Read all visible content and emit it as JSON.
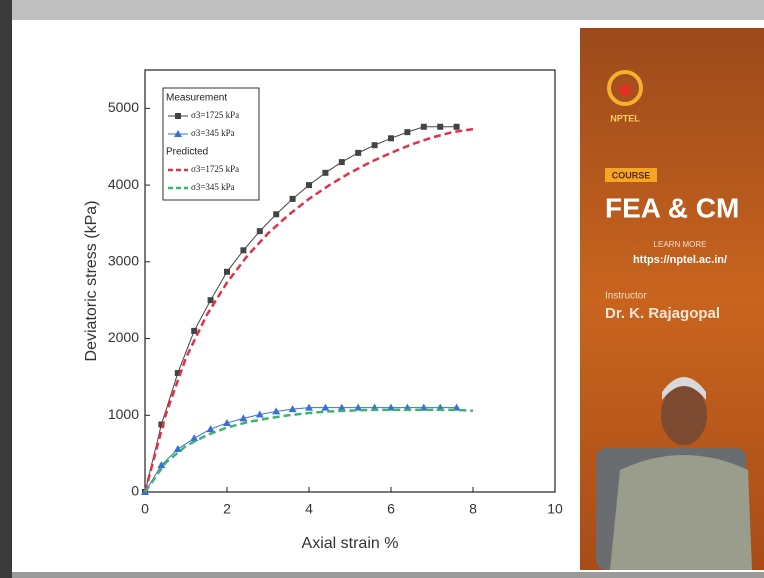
{
  "chart_data": {
    "type": "line",
    "xlabel": "Axial strain %",
    "ylabel": "Deviatoric stress (kPa)",
    "xlim": [
      0,
      10
    ],
    "xticks": [
      0,
      2,
      4,
      6,
      8,
      10
    ],
    "ylim": [
      0,
      5500
    ],
    "yticks": [
      0,
      1000,
      2000,
      3000,
      4000,
      5000
    ],
    "legend_headings": [
      "Measurement",
      "Predicted"
    ],
    "series": [
      {
        "name": "σ3=1725 kPa",
        "color": "#444444",
        "marker": "square",
        "dashed": false,
        "x": [
          0,
          0.4,
          0.8,
          1.2,
          1.6,
          2.0,
          2.4,
          2.8,
          3.2,
          3.6,
          4.0,
          4.4,
          4.8,
          5.2,
          5.6,
          6.0,
          6.4,
          6.8,
          7.2,
          7.6
        ],
        "values": [
          0,
          880,
          1550,
          2100,
          2500,
          2870,
          3150,
          3400,
          3620,
          3820,
          4000,
          4160,
          4300,
          4420,
          4520,
          4610,
          4690,
          4760,
          4760,
          4760
        ]
      },
      {
        "name": "σ3=345 kPa",
        "color": "#3a6fd8",
        "marker": "triangle",
        "dashed": false,
        "x": [
          0,
          0.4,
          0.8,
          1.2,
          1.6,
          2.0,
          2.4,
          2.8,
          3.2,
          3.6,
          4.0,
          4.4,
          4.8,
          5.2,
          5.6,
          6.0,
          6.4,
          6.8,
          7.2,
          7.6
        ],
        "values": [
          0,
          350,
          560,
          700,
          820,
          900,
          960,
          1010,
          1050,
          1080,
          1100,
          1100,
          1100,
          1100,
          1100,
          1100,
          1100,
          1100,
          1100,
          1100
        ]
      },
      {
        "name": "σ3=1725 kPa",
        "color": "#e0304a",
        "marker": "none",
        "dashed": true,
        "x": [
          0,
          0.5,
          1.0,
          1.5,
          2.0,
          2.5,
          3.0,
          3.5,
          4.0,
          4.5,
          5.0,
          5.5,
          6.0,
          6.5,
          7.0,
          7.5,
          8.0
        ],
        "values": [
          0,
          1000,
          1750,
          2300,
          2730,
          3080,
          3370,
          3610,
          3820,
          4000,
          4160,
          4300,
          4420,
          4530,
          4620,
          4690,
          4730
        ]
      },
      {
        "name": "σ3=345 kPa",
        "color": "#3cb371",
        "marker": "none",
        "dashed": true,
        "x": [
          0,
          0.5,
          1.0,
          1.5,
          2.0,
          2.5,
          3.0,
          3.5,
          4.0,
          4.5,
          5.0,
          5.5,
          6.0,
          6.5,
          7.0,
          7.5,
          8.0
        ],
        "values": [
          0,
          380,
          600,
          740,
          840,
          910,
          960,
          1000,
          1030,
          1050,
          1060,
          1070,
          1070,
          1070,
          1070,
          1070,
          1060
        ]
      }
    ]
  },
  "sidebar": {
    "logo": "NPTEL",
    "badge": "COURSE",
    "course": "FEA & CM",
    "learn_more": "LEARN MORE",
    "url": "https://nptel.ac.in/",
    "instructor_label": "Instructor",
    "instructor": "Dr. K. Rajagopal"
  }
}
